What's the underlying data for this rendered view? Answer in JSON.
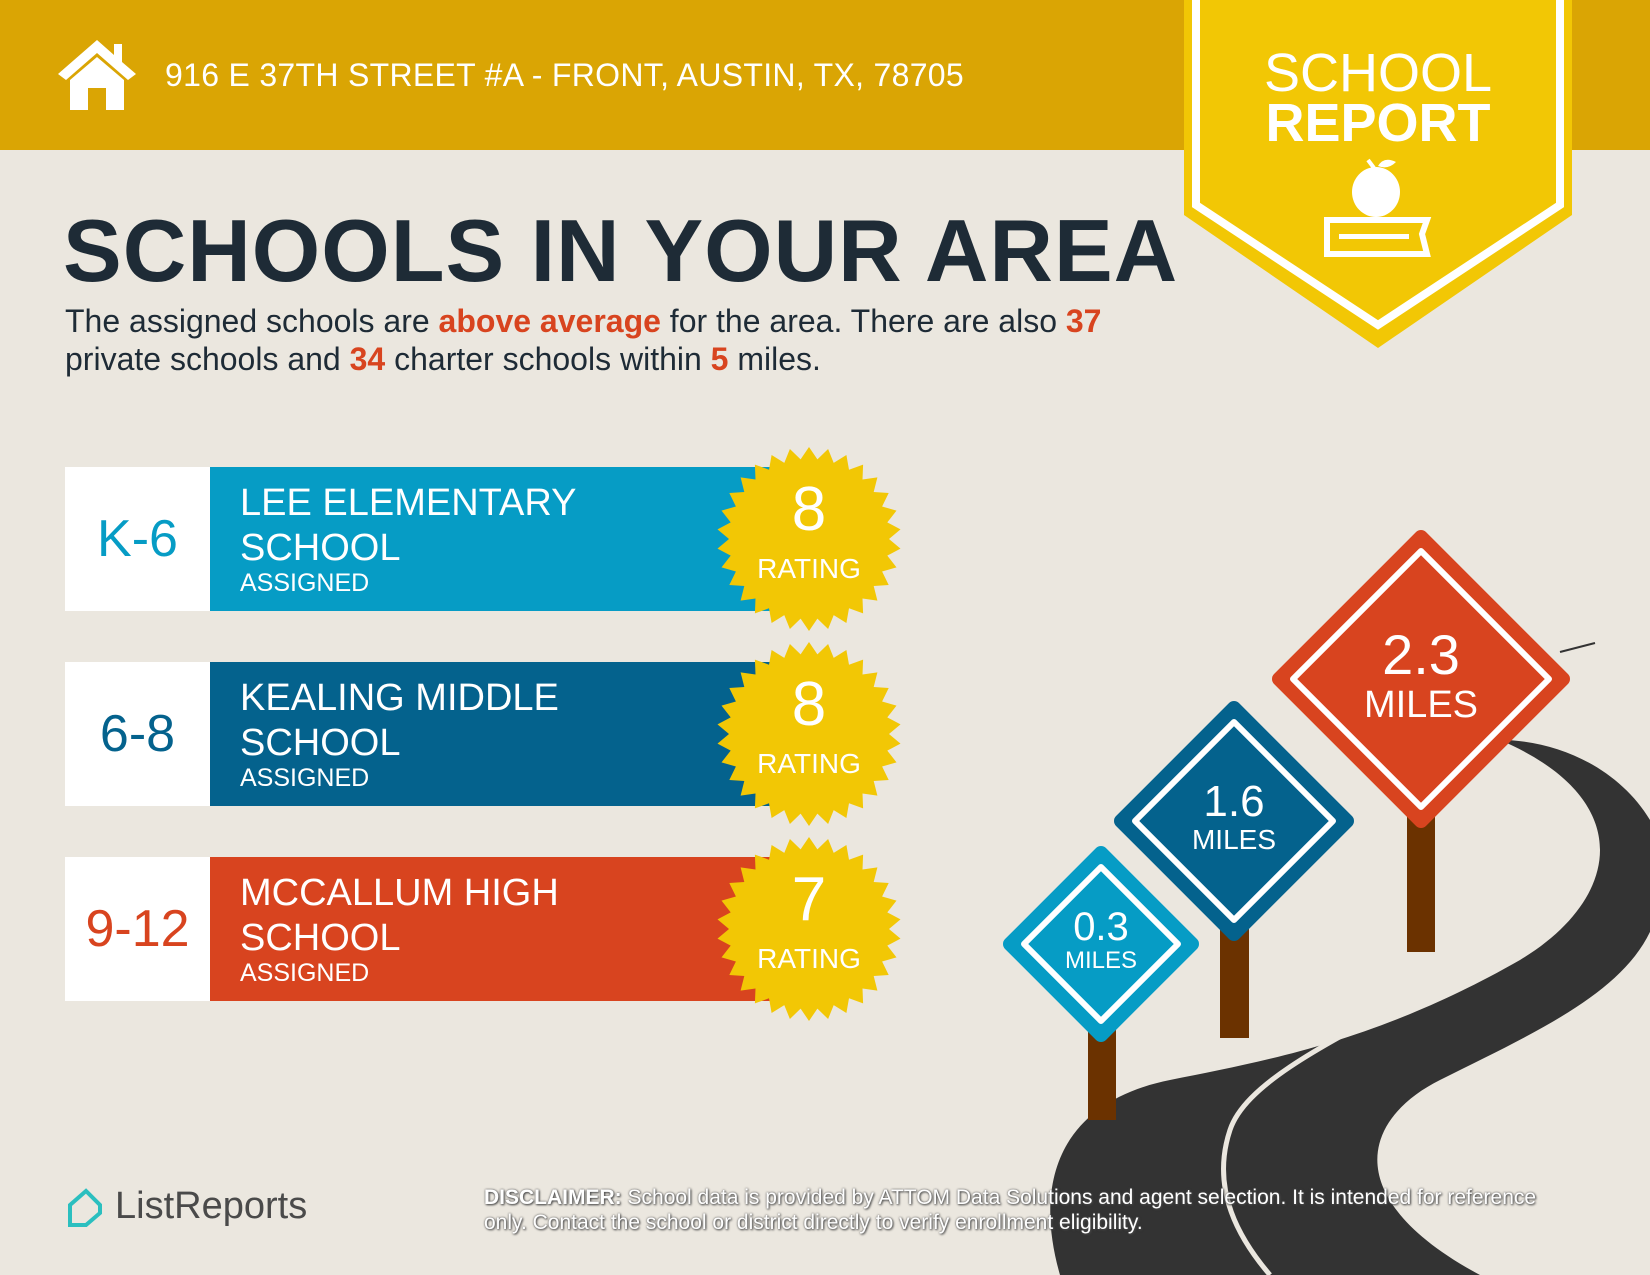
{
  "header": {
    "address": "916 E 37TH STREET #A - FRONT, AUSTIN, TX, 78705",
    "icon": "house-icon"
  },
  "badge": {
    "line1": "SCHOOL",
    "line2": "REPORT",
    "icon": "apple-on-book-icon"
  },
  "title": "SCHOOLS IN YOUR AREA",
  "intro": {
    "p1": "The assigned schools are ",
    "h1": "above average",
    "p2": " for the area. There are also ",
    "h2": "37",
    "p3": " private schools and ",
    "h3": "34",
    "p4": " charter schools within ",
    "h4": "5",
    "p5": " miles."
  },
  "schools": [
    {
      "grades": "K-6",
      "name": "LEE ELEMENTARY SCHOOL",
      "status": "ASSIGNED",
      "rating": "8",
      "rating_label": "RATING",
      "color": "#069cc5"
    },
    {
      "grades": "6-8",
      "name": "KEALING MIDDLE SCHOOL",
      "status": "ASSIGNED",
      "rating": "8",
      "rating_label": "RATING",
      "color": "#04628d"
    },
    {
      "grades": "9-12",
      "name": "MCCALLUM HIGH SCHOOL",
      "status": "ASSIGNED",
      "rating": "7",
      "rating_label": "RATING",
      "color": "#d8441f"
    }
  ],
  "signs": [
    {
      "distance": "0.3",
      "unit": "MILES",
      "color": "#069cc5"
    },
    {
      "distance": "1.6",
      "unit": "MILES",
      "color": "#04628d"
    },
    {
      "distance": "2.3",
      "unit": "MILES",
      "color": "#d8441f"
    }
  ],
  "footer": {
    "logo": "ListReports",
    "disclaimer_label": "DISCLAIMER:",
    "disclaimer_text": " School data is provided by ATTOM Data Solutions and agent selection. It is intended for reference only. Contact the school or district directly to verify enrollment eligibility."
  },
  "colors": {
    "header": "#daa504",
    "badge": "#f2c705",
    "background": "#ebe7df",
    "highlight": "#d8441f",
    "rating_seal": "#f2c705",
    "road": "#333333"
  }
}
